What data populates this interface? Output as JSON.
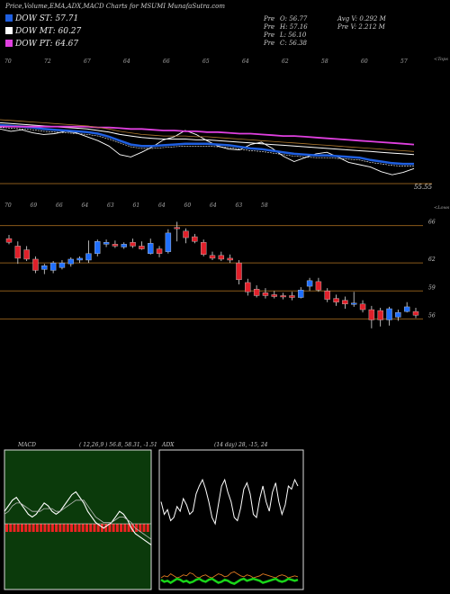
{
  "title": "Price,Volume,EMA,ADX,MACD Charts for MSUMI MunafaSutra.com",
  "legend": [
    {
      "label": "DOW ST: 57.71",
      "color": "#1f5fe0"
    },
    {
      "label": "DOW MT: 60.27",
      "color": "#ffffff"
    },
    {
      "label": "DOW PT: 64.67",
      "color": "#e040e0"
    }
  ],
  "stats_left": [
    {
      "label": "Pre",
      "value": "O: 56.77"
    },
    {
      "label": "Pre",
      "value": "H: 57.16"
    },
    {
      "label": "Pre",
      "value": "L: 56.10"
    },
    {
      "label": "Pre",
      "value": "C: 56.38"
    }
  ],
  "stats_right": [
    {
      "label": "Avg V:",
      "value": "0.292  M"
    },
    {
      "label": "Pre",
      "value": "V: 2.212  M"
    }
  ],
  "colors": {
    "up": "#1f6fff",
    "down": "#e0202a",
    "grid": "#8a5a1a",
    "ema_short": "#1f5fe0",
    "ema_mid": "#ffffff",
    "ema_long": "#e040e0",
    "adx_green": "#19d419",
    "adx_orange": "#e07a20"
  },
  "chart_data": [
    {
      "type": "line",
      "name": "ema_panel",
      "axis_label": "<Tops",
      "price_label": "55.55",
      "top_labels": [
        "70",
        "72",
        "67",
        "64",
        "66",
        "65",
        "64",
        "62",
        "58",
        "60",
        "57"
      ],
      "series": [
        {
          "name": "price",
          "values": [
            61.5,
            61.2,
            61.4,
            61.0,
            60.8,
            60.9,
            61.2,
            61.0,
            60.5,
            60.0,
            59.3,
            58.2,
            57.9,
            58.5,
            59.2,
            60.1,
            60.5,
            61.3,
            60.8,
            60.0,
            59.3,
            58.9,
            58.8,
            59.5,
            59.8,
            59.0,
            58.0,
            57.3,
            57.8,
            58.3,
            58.5,
            57.9,
            57.2,
            56.9,
            56.6,
            56.0,
            55.6,
            55.9,
            56.4
          ]
        },
        {
          "name": "ema_st",
          "values": [
            62.0,
            61.9,
            61.8,
            61.7,
            61.5,
            61.4,
            61.3,
            61.2,
            61.1,
            60.9,
            60.5,
            60.0,
            59.5,
            59.3,
            59.3,
            59.4,
            59.5,
            59.6,
            59.6,
            59.6,
            59.5,
            59.4,
            59.2,
            59.0,
            58.9,
            58.7,
            58.5,
            58.3,
            58.2,
            58.1,
            58.1,
            58.0,
            57.9,
            57.8,
            57.5,
            57.3,
            57.1,
            57.0,
            57.0
          ]
        },
        {
          "name": "ema_mt",
          "values": [
            62.3,
            62.2,
            62.1,
            62.0,
            61.9,
            61.8,
            61.7,
            61.6,
            61.5,
            61.3,
            61.1,
            60.8,
            60.6,
            60.4,
            60.3,
            60.2,
            60.2,
            60.2,
            60.1,
            60.1,
            60.0,
            59.9,
            59.8,
            59.7,
            59.6,
            59.5,
            59.4,
            59.3,
            59.2,
            59.1,
            59.0,
            58.9,
            58.8,
            58.7,
            58.6,
            58.5,
            58.4,
            58.3,
            58.2
          ]
        },
        {
          "name": "ema_pt",
          "values": [
            61.8,
            61.8,
            61.8,
            61.8,
            61.8,
            61.8,
            61.8,
            61.8,
            61.8,
            61.7,
            61.7,
            61.6,
            61.5,
            61.5,
            61.4,
            61.3,
            61.3,
            61.2,
            61.2,
            61.1,
            61.1,
            61.0,
            60.9,
            60.9,
            60.8,
            60.7,
            60.6,
            60.6,
            60.5,
            60.4,
            60.3,
            60.2,
            60.1,
            60.0,
            59.9,
            59.8,
            59.7,
            59.6,
            59.5
          ]
        }
      ],
      "ylim": [
        54,
        70
      ]
    },
    {
      "type": "candlestick",
      "name": "price_panel",
      "axis_label": "<Lows",
      "y_ticks": [
        66,
        62,
        59,
        56
      ],
      "bottom_labels": [
        "70",
        "69",
        "66",
        "64",
        "63",
        "61",
        "64",
        "60",
        "64",
        "63",
        "58"
      ],
      "candles": [
        {
          "o": 64.6,
          "h": 65.0,
          "l": 64.0,
          "c": 64.2
        },
        {
          "o": 63.8,
          "h": 64.3,
          "l": 61.9,
          "c": 62.5
        },
        {
          "o": 63.4,
          "h": 63.8,
          "l": 62.2,
          "c": 62.4
        },
        {
          "o": 62.4,
          "h": 62.7,
          "l": 60.9,
          "c": 61.2
        },
        {
          "o": 61.3,
          "h": 61.9,
          "l": 60.8,
          "c": 61.7
        },
        {
          "o": 61.2,
          "h": 62.2,
          "l": 60.9,
          "c": 62.0
        },
        {
          "o": 61.5,
          "h": 62.3,
          "l": 61.3,
          "c": 62.0
        },
        {
          "o": 61.9,
          "h": 62.6,
          "l": 61.6,
          "c": 62.4
        },
        {
          "o": 62.3,
          "h": 62.7,
          "l": 62.0,
          "c": 62.5
        },
        {
          "o": 62.3,
          "h": 64.4,
          "l": 62.0,
          "c": 63.0
        },
        {
          "o": 63.0,
          "h": 64.5,
          "l": 62.7,
          "c": 64.3
        },
        {
          "o": 64.0,
          "h": 64.5,
          "l": 63.7,
          "c": 64.2
        },
        {
          "o": 64.0,
          "h": 64.4,
          "l": 63.6,
          "c": 63.8
        },
        {
          "o": 63.7,
          "h": 64.2,
          "l": 63.5,
          "c": 64.0
        },
        {
          "o": 64.2,
          "h": 64.6,
          "l": 63.6,
          "c": 63.8
        },
        {
          "o": 63.8,
          "h": 64.3,
          "l": 63.4,
          "c": 63.5
        },
        {
          "o": 63.0,
          "h": 64.6,
          "l": 62.9,
          "c": 64.1
        },
        {
          "o": 63.5,
          "h": 63.8,
          "l": 62.6,
          "c": 63.0
        },
        {
          "o": 63.2,
          "h": 65.6,
          "l": 63.0,
          "c": 65.2
        },
        {
          "o": 65.8,
          "h": 66.4,
          "l": 64.3,
          "c": 65.7
        },
        {
          "o": 65.4,
          "h": 65.7,
          "l": 64.1,
          "c": 64.7
        },
        {
          "o": 64.8,
          "h": 65.1,
          "l": 64.1,
          "c": 64.3
        },
        {
          "o": 64.2,
          "h": 64.5,
          "l": 62.7,
          "c": 62.9
        },
        {
          "o": 62.8,
          "h": 63.2,
          "l": 62.3,
          "c": 62.5
        },
        {
          "o": 62.8,
          "h": 63.2,
          "l": 62.2,
          "c": 62.4
        },
        {
          "o": 62.5,
          "h": 62.9,
          "l": 62.0,
          "c": 62.3
        },
        {
          "o": 62.0,
          "h": 62.3,
          "l": 59.7,
          "c": 60.2
        },
        {
          "o": 59.9,
          "h": 60.3,
          "l": 58.5,
          "c": 58.9
        },
        {
          "o": 59.2,
          "h": 59.6,
          "l": 58.3,
          "c": 58.5
        },
        {
          "o": 58.8,
          "h": 59.3,
          "l": 58.2,
          "c": 58.5
        },
        {
          "o": 58.6,
          "h": 59.0,
          "l": 58.2,
          "c": 58.4
        },
        {
          "o": 58.5,
          "h": 58.8,
          "l": 58.1,
          "c": 58.4
        },
        {
          "o": 58.5,
          "h": 58.9,
          "l": 58.0,
          "c": 58.3
        },
        {
          "o": 58.3,
          "h": 59.4,
          "l": 58.2,
          "c": 59.1
        },
        {
          "o": 59.5,
          "h": 60.4,
          "l": 59.0,
          "c": 60.1
        },
        {
          "o": 60.0,
          "h": 60.4,
          "l": 58.9,
          "c": 59.1
        },
        {
          "o": 59.0,
          "h": 59.3,
          "l": 57.8,
          "c": 58.1
        },
        {
          "o": 58.2,
          "h": 58.6,
          "l": 57.4,
          "c": 57.8
        },
        {
          "o": 58.0,
          "h": 58.4,
          "l": 57.1,
          "c": 57.6
        },
        {
          "o": 57.6,
          "h": 58.9,
          "l": 57.3,
          "c": 57.7
        },
        {
          "o": 57.6,
          "h": 58.0,
          "l": 56.7,
          "c": 57.0
        },
        {
          "o": 57.0,
          "h": 57.4,
          "l": 55.0,
          "c": 55.9
        },
        {
          "o": 56.9,
          "h": 57.2,
          "l": 55.2,
          "c": 55.9
        },
        {
          "o": 55.9,
          "h": 57.3,
          "l": 55.3,
          "c": 57.1
        },
        {
          "o": 56.2,
          "h": 57.0,
          "l": 55.8,
          "c": 56.7
        },
        {
          "o": 56.8,
          "h": 57.8,
          "l": 56.7,
          "c": 57.3
        },
        {
          "o": 56.8,
          "h": 57.2,
          "l": 56.1,
          "c": 56.4
        }
      ],
      "ylim": [
        54.5,
        67.5
      ]
    },
    {
      "type": "line",
      "name": "macd_panel",
      "title": "MACD",
      "params": "( 12,26,9 ) 56.8, 58.31, -1.51",
      "series": [
        {
          "name": "macd",
          "values": [
            0.3,
            0.5,
            0.7,
            0.8,
            0.6,
            0.4,
            0.2,
            0.1,
            0.2,
            0.4,
            0.6,
            0.5,
            0.3,
            0.2,
            0.3,
            0.5,
            0.7,
            0.9,
            1.0,
            0.8,
            0.6,
            0.3,
            0.1,
            -0.1,
            -0.2,
            -0.3,
            -0.2,
            -0.1,
            0.1,
            0.3,
            0.2,
            0.0,
            -0.3,
            -0.5,
            -0.6,
            -0.7,
            -0.8,
            -0.9
          ]
        },
        {
          "name": "signal",
          "values": [
            0.2,
            0.3,
            0.5,
            0.6,
            0.6,
            0.5,
            0.4,
            0.3,
            0.3,
            0.3,
            0.4,
            0.4,
            0.4,
            0.3,
            0.3,
            0.4,
            0.5,
            0.6,
            0.7,
            0.7,
            0.7,
            0.5,
            0.3,
            0.1,
            0.0,
            -0.1,
            -0.1,
            -0.1,
            0.0,
            0.1,
            0.1,
            0.0,
            -0.1,
            -0.3,
            -0.4,
            -0.5,
            -0.6,
            -0.7
          ]
        },
        {
          "name": "histogram",
          "values": [
            -0.5,
            -0.5,
            -0.5,
            -0.5,
            -0.5,
            -0.5,
            -0.5,
            -0.5,
            -0.5,
            -0.5,
            -0.5,
            -0.5,
            -0.5,
            -0.5,
            -0.5,
            -0.5,
            -0.5,
            -0.5,
            -0.5,
            -0.5,
            -0.5,
            -0.5,
            -0.5,
            -0.5,
            -0.5,
            -0.5,
            -0.5,
            -0.5,
            -0.5,
            -0.5,
            -0.5,
            -0.5,
            -0.5,
            -0.5,
            -0.5,
            -0.5,
            -0.5,
            -0.5
          ]
        }
      ],
      "ylim": [
        -2.5,
        2.5
      ]
    },
    {
      "type": "line",
      "name": "adx_panel",
      "title": "ADX",
      "params": "(14  day) 28, -15, 24",
      "series": [
        {
          "name": "adx",
          "values": [
            30,
            22,
            25,
            18,
            20,
            27,
            24,
            32,
            28,
            22,
            24,
            35,
            40,
            44,
            38,
            30,
            20,
            16,
            28,
            40,
            44,
            36,
            30,
            20,
            18,
            26,
            38,
            42,
            35,
            22,
            20,
            32,
            40,
            30,
            24,
            36,
            42,
            30,
            22,
            28,
            40,
            38,
            44,
            40
          ]
        },
        {
          "name": "di_plus",
          "values": [
            10,
            12,
            11,
            14,
            12,
            10,
            11,
            13,
            12,
            15,
            14,
            11,
            10,
            12,
            13,
            11,
            10,
            12,
            14,
            13,
            11,
            12,
            15,
            16,
            14,
            12,
            11,
            13,
            12,
            10,
            11,
            12,
            14,
            13,
            12,
            11,
            10,
            12,
            13,
            12,
            10,
            11,
            12,
            11
          ]
        },
        {
          "name": "di_minus",
          "values": [
            8,
            6,
            7,
            5,
            7,
            9,
            8,
            6,
            7,
            5,
            6,
            8,
            9,
            7,
            6,
            8,
            9,
            7,
            5,
            6,
            8,
            7,
            5,
            4,
            6,
            8,
            9,
            7,
            8,
            9,
            8,
            7,
            5,
            6,
            7,
            8,
            9,
            7,
            6,
            7,
            9,
            8,
            7,
            8
          ]
        }
      ],
      "ylim": [
        0,
        50
      ]
    }
  ]
}
